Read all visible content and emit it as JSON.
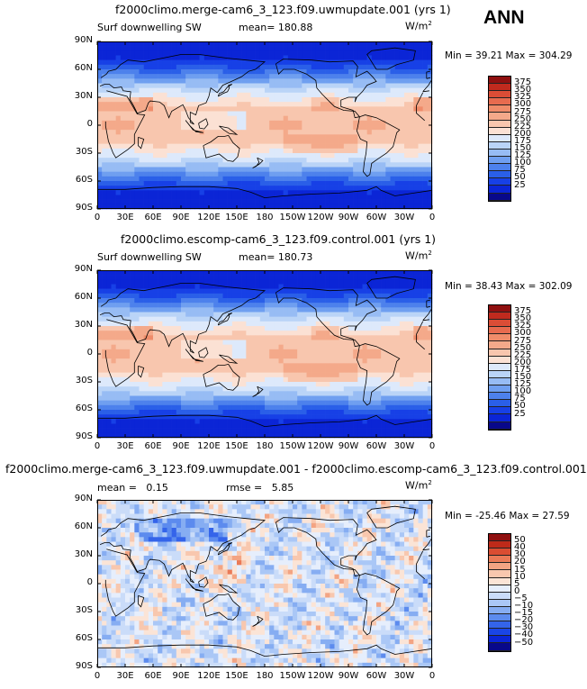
{
  "season": "ANN",
  "colors": {
    "ssw": [
      "#08088a",
      "#0b25d6",
      "#1740e6",
      "#2a5fe8",
      "#4d81ec",
      "#6f9ff0",
      "#97bcf4",
      "#bad4f7",
      "#dde9fb",
      "#fbe1d4",
      "#f8c6ae",
      "#f4a98a",
      "#ef8c6a",
      "#e76b4f",
      "#db4d36",
      "#c02a1e",
      "#8f1010"
    ],
    "diff": [
      "#08088a",
      "#0b25d6",
      "#1a45e6",
      "#3464ea",
      "#5c8bee",
      "#86adf2",
      "#aac7f6",
      "#cadcf9",
      "#e6eefc",
      "#fbe4d6",
      "#f8c7ae",
      "#f3a483",
      "#ea7a57",
      "#da4d32",
      "#bf2a19",
      "#8f1010"
    ],
    "coast": "#000000"
  },
  "panels": [
    {
      "title": "f2000climo.merge-cam6_3_123.f09.uwmupdate.001 (yrs 1)",
      "var_label": "Surf downwelling SW",
      "mean_label": "mean=",
      "mean": "180.88",
      "units": "W/m",
      "units_exp": "2",
      "min_label": "Min =",
      "min": "39.21",
      "max_label": "Max =",
      "max": "304.29",
      "colorbar": [
        "375",
        "350",
        "325",
        "300",
        "275",
        "250",
        "225",
        "200",
        "175",
        "150",
        "125",
        "100",
        "75",
        "50",
        "25"
      ]
    },
    {
      "title": "f2000climo.escomp-cam6_3_123.f09.control.001 (yrs 1)",
      "var_label": "Surf downwelling SW",
      "mean_label": "mean=",
      "mean": "180.73",
      "units": "W/m",
      "units_exp": "2",
      "min_label": "Min =",
      "min": "38.43",
      "max_label": "Max =",
      "max": "302.09",
      "colorbar": [
        "375",
        "350",
        "325",
        "300",
        "275",
        "250",
        "225",
        "200",
        "175",
        "150",
        "125",
        "100",
        "75",
        "50",
        "25"
      ]
    },
    {
      "title": "f2000climo.merge-cam6_3_123.f09.uwmupdate.001 - f2000climo.escomp-cam6_3_123.f09.control.001",
      "mean_label": "mean =",
      "mean": "0.15",
      "rmse_label": "rmse =",
      "rmse": "5.85",
      "units": "W/m",
      "units_exp": "2",
      "min_label": "Min =",
      "min": "-25.46",
      "max_label": "Max =",
      "max": "27.59",
      "colorbar": [
        "50",
        "40",
        "30",
        "20",
        "15",
        "10",
        "5",
        "0",
        "−5",
        "−10",
        "−15",
        "−20",
        "−30",
        "−40",
        "−50"
      ]
    }
  ],
  "axes": {
    "lat_labels": [
      "90N",
      "60N",
      "30N",
      "0",
      "30S",
      "60S",
      "90S"
    ],
    "lon_labels": [
      "0",
      "30E",
      "60E",
      "90E",
      "120E",
      "150E",
      "180",
      "150W",
      "120W",
      "90W",
      "60W",
      "30W",
      "0"
    ]
  }
}
